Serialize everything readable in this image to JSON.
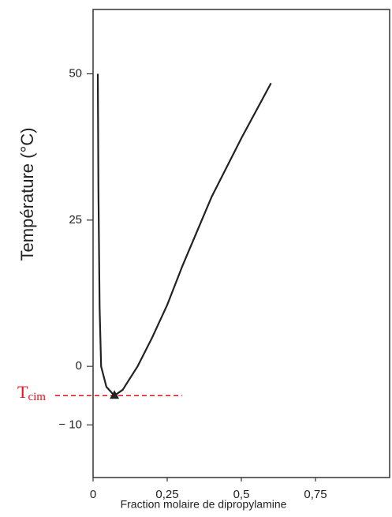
{
  "chart_data": {
    "type": "line",
    "xlabel": "Fraction molaire de dipropylamine",
    "ylabel": "Température (°C)",
    "x": [
      0.016,
      0.018,
      0.022,
      0.027,
      0.045,
      0.072,
      0.1,
      0.15,
      0.2,
      0.25,
      0.3,
      0.4,
      0.5,
      0.6
    ],
    "values": [
      50,
      30,
      10,
      0,
      -3.5,
      -5,
      -4,
      0,
      5,
      10.5,
      17,
      29,
      39,
      48.4
    ],
    "color": "#222222",
    "xlim": [
      0,
      1
    ],
    "ylim": [
      -19,
      61
    ],
    "xticks": [
      0,
      {
        "value": 0.25,
        "label": "0,25"
      },
      {
        "value": 0.5,
        "label": "0,5"
      },
      {
        "value": 0.75,
        "label": "0,75"
      }
    ],
    "yticks": [
      {
        "value": -10,
        "label": "− 10"
      },
      0,
      25,
      50
    ],
    "annotation": {
      "text": "T",
      "sub": "cim",
      "y": -5,
      "x_end": 0.3,
      "color": "#e0141e"
    },
    "marker": {
      "x": 0.072,
      "y": -5
    }
  }
}
